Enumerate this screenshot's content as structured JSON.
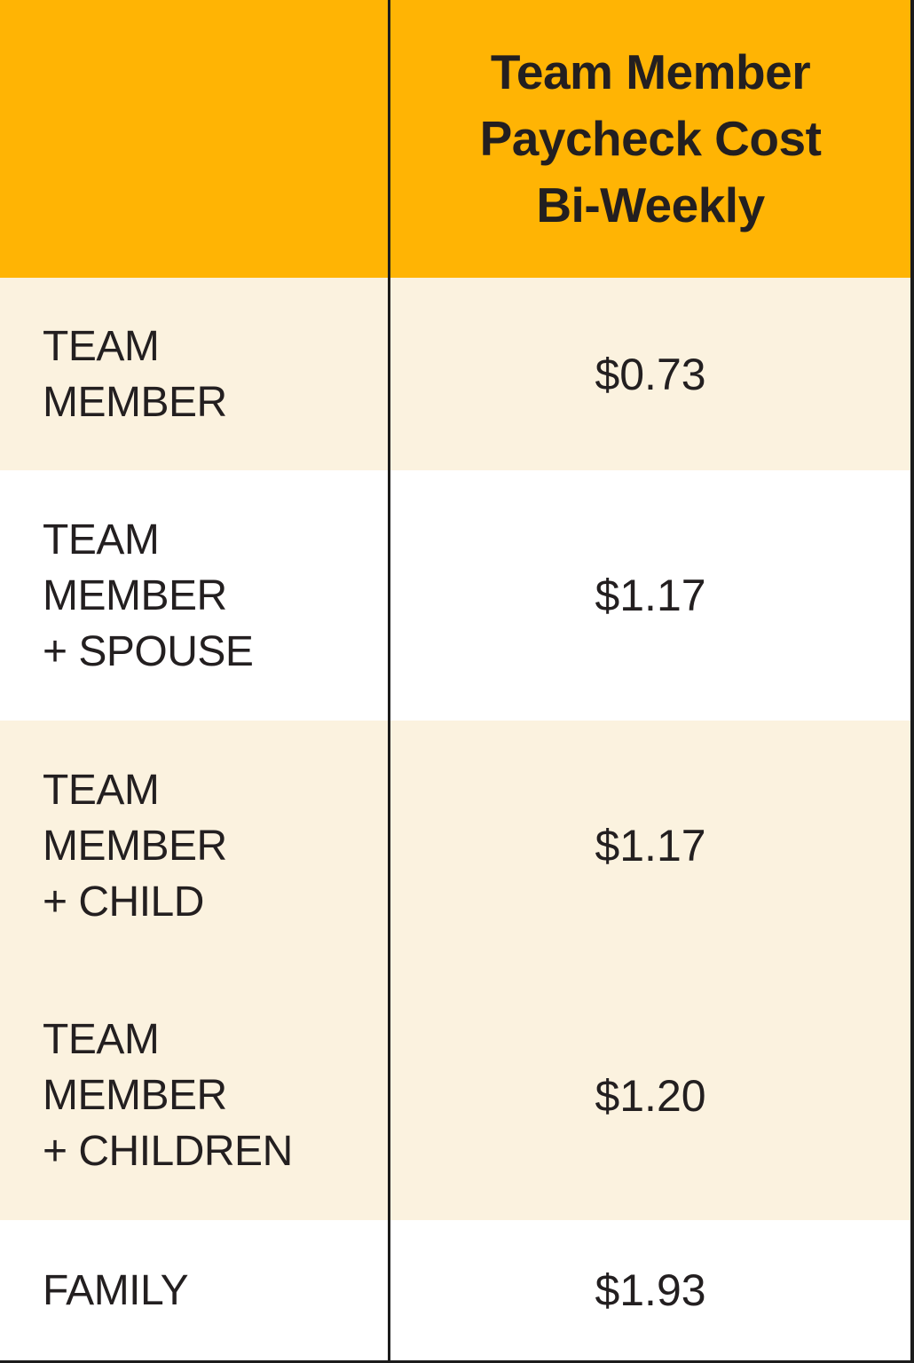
{
  "colors": {
    "header_bg": "#FFB404",
    "row_cream_bg": "#FBF2DF",
    "row_white_bg": "#FFFFFF",
    "text": "#231F20",
    "divider_line": "#1C1C1C"
  },
  "table": {
    "header": {
      "col1_title": "",
      "col2_title": "Team Member\nPaycheck Cost\nBi-Weekly"
    },
    "rows": [
      {
        "label": "TEAM\nMEMBER",
        "value": "$0.73"
      },
      {
        "label": "TEAM\nMEMBER\n+ SPOUSE",
        "value": "$1.17"
      },
      {
        "label": "TEAM\nMEMBER\n+ CHILD",
        "value": "$1.17"
      },
      {
        "label": "TEAM\nMEMBER\n+ CHILDREN",
        "value": "$1.20"
      },
      {
        "label": "FAMILY",
        "value": "$1.93"
      }
    ]
  },
  "chart_data": {
    "type": "table",
    "title": "Team Member Paycheck Cost Bi-Weekly",
    "categories": [
      "TEAM MEMBER",
      "TEAM MEMBER + SPOUSE",
      "TEAM MEMBER + CHILD",
      "TEAM MEMBER + CHILDREN",
      "FAMILY"
    ],
    "values": [
      0.73,
      1.17,
      1.17,
      1.2,
      1.93
    ]
  }
}
